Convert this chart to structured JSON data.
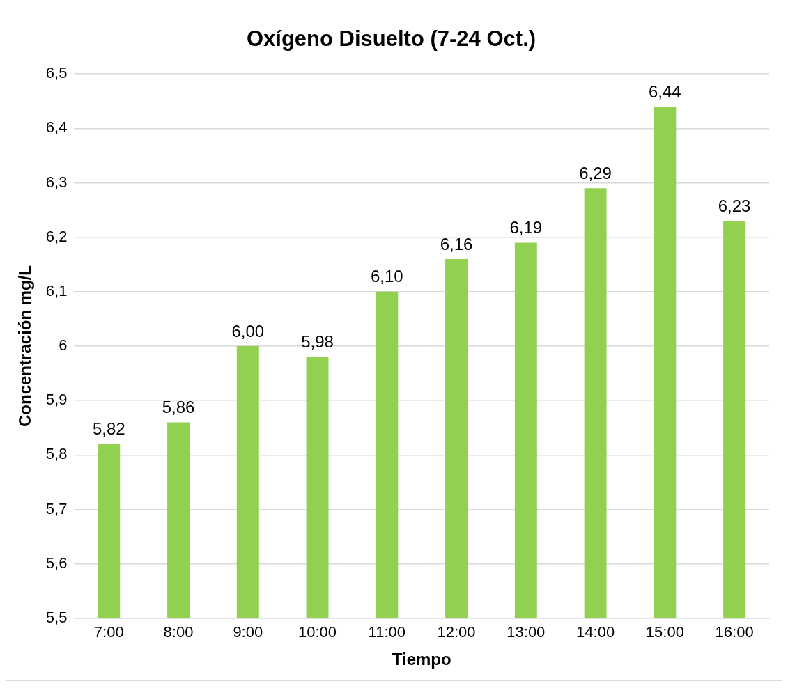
{
  "chart_data": {
    "type": "bar",
    "title": "Oxígeno Disuelto (7-24 Oct.)",
    "xlabel": "Tiempo",
    "ylabel": "Concentración mg/L",
    "categories": [
      "7:00",
      "8:00",
      "9:00",
      "10:00",
      "11:00",
      "12:00",
      "13:00",
      "14:00",
      "15:00",
      "16:00"
    ],
    "values": [
      5.82,
      5.86,
      6.0,
      5.98,
      6.1,
      6.16,
      6.19,
      6.29,
      6.44,
      6.23
    ],
    "value_labels": [
      "5,82",
      "5,86",
      "6,00",
      "5,98",
      "6,10",
      "6,16",
      "6,19",
      "6,29",
      "6,44",
      "6,23"
    ],
    "color": "#92d050",
    "ylim": [
      5.5,
      6.5
    ],
    "yticks": [
      {
        "value": 5.5,
        "label": "5,5"
      },
      {
        "value": 5.6,
        "label": "5,6"
      },
      {
        "value": 5.7,
        "label": "5,7"
      },
      {
        "value": 5.8,
        "label": "5,8"
      },
      {
        "value": 5.9,
        "label": "5,9"
      },
      6,
      {
        "value": 6.1,
        "label": "6,1"
      },
      {
        "value": 6.2,
        "label": "6,2"
      },
      {
        "value": 6.3,
        "label": "6,3"
      },
      {
        "value": 6.4,
        "label": "6,4"
      },
      {
        "value": 6.5,
        "label": "6,5"
      }
    ],
    "grid": "y",
    "legend": false
  }
}
